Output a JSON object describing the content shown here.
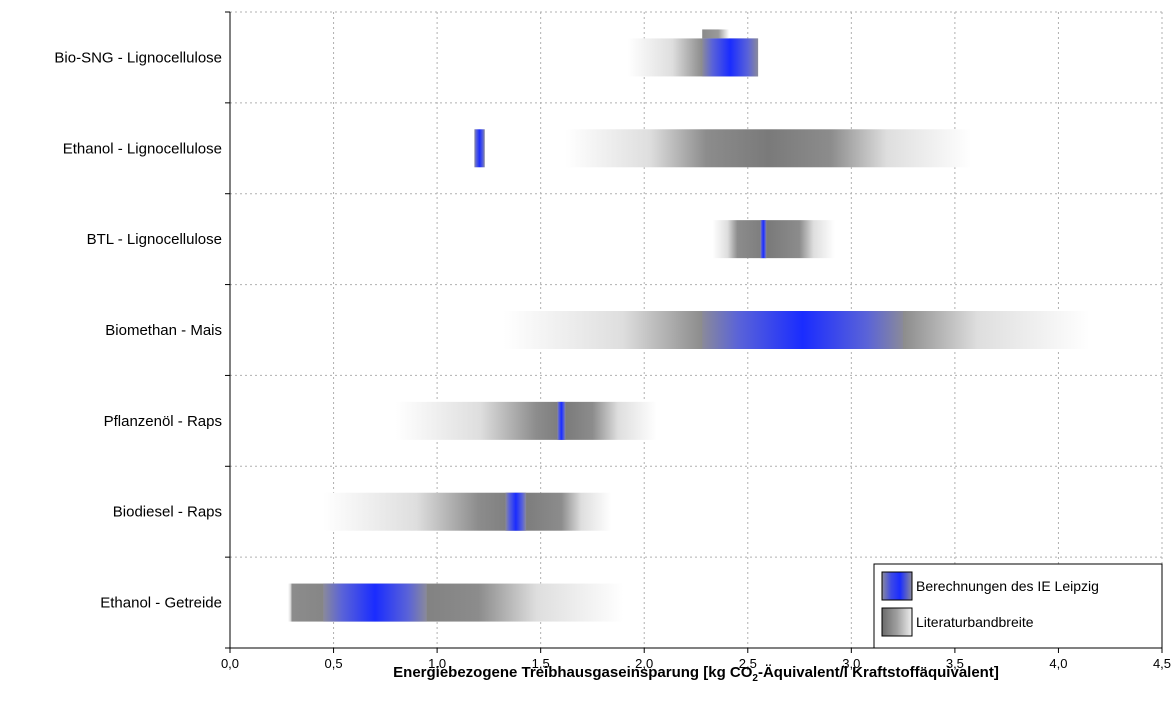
{
  "chart_data": {
    "type": "bar",
    "orientation": "horizontal-range",
    "xlabel_parts": {
      "before": "Energiebezogene Treibhausgaseinsparung [kg CO",
      "sub": "2",
      "after": "-Äquivalent/l Kraftstoffäquivalent]"
    },
    "xlim": [
      0,
      4.5
    ],
    "xticks": [
      "0,0",
      "0,5",
      "1,0",
      "1,5",
      "2,0",
      "2,5",
      "3,0",
      "3,5",
      "4,0",
      "4,5"
    ],
    "xtick_values": [
      0,
      0.5,
      1.0,
      1.5,
      2.0,
      2.5,
      3.0,
      3.5,
      4.0,
      4.5
    ],
    "grid": true,
    "legend_position": "bottom-right",
    "categories": [
      "Bio-SNG - Lignocellulose",
      "Ethanol - Lignocellulose",
      "BTL - Lignocellulose",
      "Biomethan - Mais",
      "Pflanzenöl - Raps",
      "Biodiesel - Raps",
      "Ethanol - Getreide"
    ],
    "series": [
      {
        "name": "Literaturbandbreite",
        "color": "#808080",
        "ranges": [
          [
            1.92,
            2.55
          ],
          [
            1.62,
            3.58
          ],
          [
            2.33,
            2.92
          ],
          [
            1.32,
            4.15
          ],
          [
            0.8,
            2.06
          ],
          [
            0.45,
            1.84
          ],
          [
            0.28,
            1.9
          ]
        ],
        "cores": [
          [
            2.28,
            2.55
          ],
          [
            2.3,
            2.9
          ],
          [
            2.45,
            2.75
          ],
          [
            2.28,
            3.25
          ],
          [
            1.48,
            1.75
          ],
          [
            1.2,
            1.6
          ],
          [
            0.3,
            1.2
          ]
        ]
      },
      {
        "name": "Berechnungen des IE Leipzig",
        "color": "#1a2cff",
        "ranges": [
          [
            2.28,
            2.55
          ],
          [
            1.18,
            1.23
          ],
          [
            2.56,
            2.59
          ],
          [
            2.28,
            3.25
          ],
          [
            1.58,
            1.62
          ],
          [
            1.33,
            1.43
          ],
          [
            0.45,
            0.95
          ]
        ]
      }
    ],
    "extra_marks": [
      {
        "category": "Bio-SNG - Lignocellulose",
        "range": [
          2.28,
          2.41
        ],
        "color": "#808080"
      }
    ],
    "colors": {
      "axis": "#000000",
      "grid": "#b0b0b0",
      "background": "#ffffff"
    }
  }
}
